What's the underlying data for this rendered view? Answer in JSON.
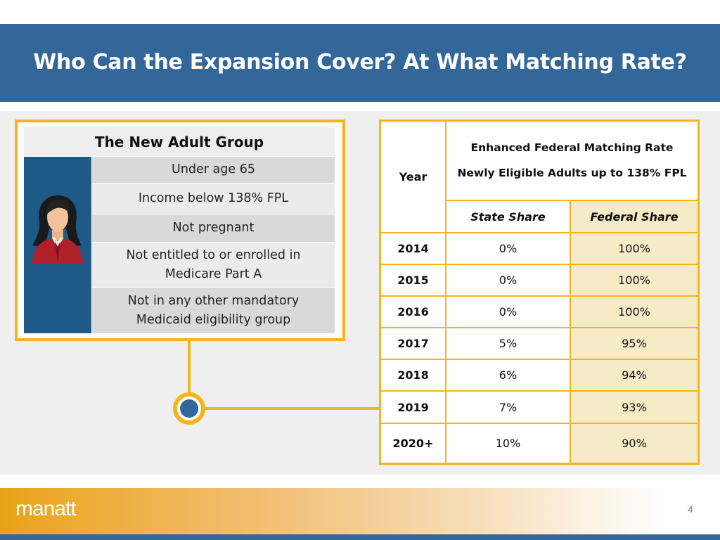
{
  "slide": {
    "title": "Who Can the Expansion Cover? At What Matching Rate?",
    "page_number": "4",
    "logo_text": "manatt"
  },
  "group": {
    "title": "The New Adult Group",
    "criteria": [
      "Under age 65",
      "Income below 138% FPL",
      "Not pregnant",
      "Not entitled to or enrolled in Medicare Part A",
      "Not in any other mandatory Medicaid eligibility group"
    ]
  },
  "rates": {
    "year_header": "Year",
    "main_header_line1": "Enhanced Federal Matching Rate",
    "main_header_line2": "Newly Eligible Adults up to 138% FPL",
    "state_header": "State Share",
    "federal_header": "Federal Share",
    "rows": [
      {
        "year": "2014",
        "state": "0%",
        "federal": "100%"
      },
      {
        "year": "2015",
        "state": "0%",
        "federal": "100%"
      },
      {
        "year": "2016",
        "state": "0%",
        "federal": "100%"
      },
      {
        "year": "2017",
        "state": "5%",
        "federal": "95%"
      },
      {
        "year": "2018",
        "state": "6%",
        "federal": "94%"
      },
      {
        "year": "2019",
        "state": "7%",
        "federal": "93%"
      },
      {
        "year": "2020+",
        "state": "10%",
        "federal": "90%"
      }
    ]
  },
  "colors": {
    "title_bar": "#336699",
    "accent_gold": "#f2b61c",
    "federal_fill": "#f5ebc6",
    "avatar_panel": "#1d5a86"
  }
}
